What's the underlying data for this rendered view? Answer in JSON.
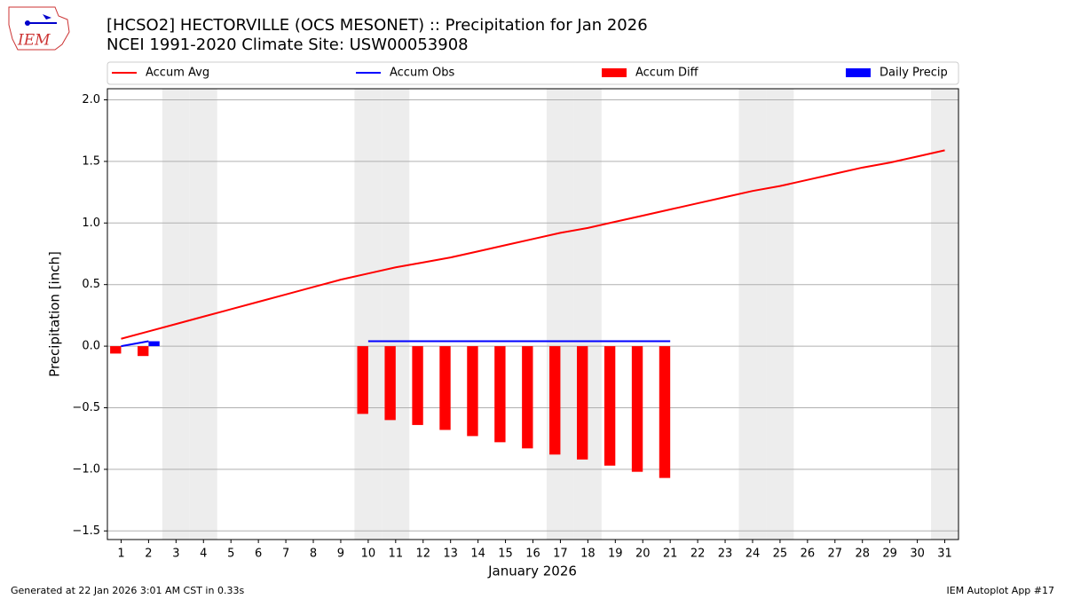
{
  "header": {
    "logo_text": "IEM"
  },
  "chart_data": {
    "type": "combo",
    "title": "[HCSO2] HECTORVILLE (OCS MESONET) :: Precipitation for Jan 2026",
    "subtitle": "NCEI 1991-2020 Climate Site: USW00053908",
    "xlabel": "January 2026",
    "ylabel": "Precipitation [inch]",
    "x": [
      1,
      2,
      3,
      4,
      5,
      6,
      7,
      8,
      9,
      10,
      11,
      12,
      13,
      14,
      15,
      16,
      17,
      18,
      19,
      20,
      21,
      22,
      23,
      24,
      25,
      26,
      27,
      28,
      29,
      30,
      31
    ],
    "xlim": [
      0.5,
      31.5
    ],
    "xticks": [
      1,
      2,
      3,
      4,
      5,
      6,
      7,
      8,
      9,
      10,
      11,
      12,
      13,
      14,
      15,
      16,
      17,
      18,
      19,
      20,
      21,
      22,
      23,
      24,
      25,
      26,
      27,
      28,
      29,
      30,
      31
    ],
    "ylim": [
      -1.57,
      2.09
    ],
    "yticks": [
      {
        "value": -1.5,
        "label": "−1.5"
      },
      {
        "value": -1,
        "label": "−1.0"
      },
      {
        "value": -0.5,
        "label": "−0.5"
      },
      {
        "value": 0,
        "label": "0.0"
      },
      0.5,
      {
        "value": 1,
        "label": "1.0"
      },
      1.5,
      {
        "value": 2,
        "label": "2.0"
      }
    ],
    "grid": true,
    "shaded_days": [
      3,
      4,
      10,
      11,
      17,
      18,
      24,
      25,
      31
    ],
    "series": [
      {
        "name": "Accum Avg",
        "type": "line",
        "color": "#ff0000",
        "values": [
          0.06,
          0.12,
          0.18,
          0.24,
          0.3,
          0.36,
          0.42,
          0.48,
          0.54,
          0.59,
          0.64,
          0.68,
          0.72,
          0.77,
          0.82,
          0.87,
          0.92,
          0.96,
          1.01,
          1.06,
          1.11,
          1.16,
          1.21,
          1.26,
          1.3,
          1.35,
          1.4,
          1.45,
          1.49,
          1.54,
          1.59
        ]
      },
      {
        "name": "Accum Obs",
        "type": "line",
        "color": "#0000ff",
        "values": [
          0,
          0.04,
          null,
          null,
          null,
          null,
          null,
          null,
          null,
          0.04,
          0.04,
          0.04,
          0.04,
          0.04,
          0.04,
          0.04,
          0.04,
          0.04,
          0.04,
          0.04,
          0.04,
          null,
          null,
          null,
          null,
          null,
          null,
          null,
          null,
          null,
          null
        ]
      },
      {
        "name": "Accum Diff",
        "type": "bar",
        "color": "#ff0000",
        "values": [
          -0.06,
          -0.08,
          null,
          null,
          null,
          null,
          null,
          null,
          null,
          -0.55,
          -0.6,
          -0.64,
          -0.68,
          -0.73,
          -0.78,
          -0.83,
          -0.88,
          -0.92,
          -0.97,
          -1.02,
          -1.07,
          null,
          null,
          null,
          null,
          null,
          null,
          null,
          null,
          null,
          null
        ]
      },
      {
        "name": "Daily Precip",
        "type": "bar",
        "color": "#0000ff",
        "values": [
          0,
          0.04,
          null,
          null,
          null,
          null,
          null,
          null,
          null,
          0,
          0,
          0,
          0,
          0,
          0,
          0,
          0,
          0,
          0,
          0,
          0,
          null,
          null,
          null,
          null,
          null,
          null,
          null,
          null,
          null,
          null
        ]
      }
    ],
    "footer_left": "Generated at 22 Jan 2026 3:01 AM CST in 0.33s",
    "footer_right": "IEM Autoplot App #17"
  }
}
